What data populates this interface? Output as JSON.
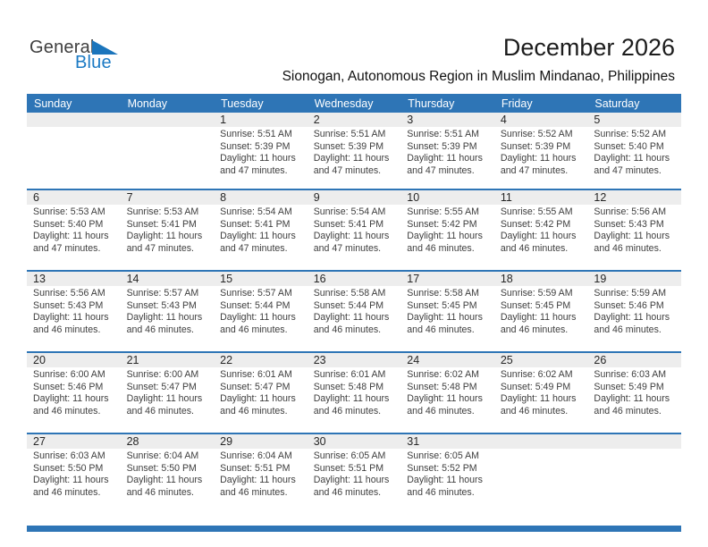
{
  "logo": {
    "line1": "General",
    "line2": "Blue"
  },
  "title": "December 2026",
  "subtitle": "Sionogan, Autonomous Region in Muslim Mindanao, Philippines",
  "weekday_headers": [
    "Sunday",
    "Monday",
    "Tuesday",
    "Wednesday",
    "Thursday",
    "Friday",
    "Saturday"
  ],
  "colors": {
    "header_blue": "#2e75b6",
    "week_separator_blue": "#2e75b6",
    "number_strip_gray": "#ededed",
    "logo_blue": "#1b75bc",
    "body_text": "#3e3e3e"
  },
  "weeks": [
    {
      "days": [
        null,
        null,
        {
          "day": "1",
          "sunrise": "5:51 AM",
          "sunset": "5:39 PM",
          "lines": [
            "Sunrise: 5:51 AM",
            "Sunset: 5:39 PM",
            "Daylight: 11 hours",
            "and 47 minutes."
          ]
        },
        {
          "day": "2",
          "sunrise": "5:51 AM",
          "sunset": "5:39 PM",
          "lines": [
            "Sunrise: 5:51 AM",
            "Sunset: 5:39 PM",
            "Daylight: 11 hours",
            "and 47 minutes."
          ]
        },
        {
          "day": "3",
          "sunrise": "5:51 AM",
          "sunset": "5:39 PM",
          "lines": [
            "Sunrise: 5:51 AM",
            "Sunset: 5:39 PM",
            "Daylight: 11 hours",
            "and 47 minutes."
          ]
        },
        {
          "day": "4",
          "sunrise": "5:52 AM",
          "sunset": "5:39 PM",
          "lines": [
            "Sunrise: 5:52 AM",
            "Sunset: 5:39 PM",
            "Daylight: 11 hours",
            "and 47 minutes."
          ]
        },
        {
          "day": "5",
          "sunrise": "5:52 AM",
          "sunset": "5:40 PM",
          "lines": [
            "Sunrise: 5:52 AM",
            "Sunset: 5:40 PM",
            "Daylight: 11 hours",
            "and 47 minutes."
          ]
        }
      ]
    },
    {
      "days": [
        {
          "day": "6",
          "sunrise": "5:53 AM",
          "sunset": "5:40 PM",
          "lines": [
            "Sunrise: 5:53 AM",
            "Sunset: 5:40 PM",
            "Daylight: 11 hours",
            "and 47 minutes."
          ]
        },
        {
          "day": "7",
          "sunrise": "5:53 AM",
          "sunset": "5:41 PM",
          "lines": [
            "Sunrise: 5:53 AM",
            "Sunset: 5:41 PM",
            "Daylight: 11 hours",
            "and 47 minutes."
          ]
        },
        {
          "day": "8",
          "sunrise": "5:54 AM",
          "sunset": "5:41 PM",
          "lines": [
            "Sunrise: 5:54 AM",
            "Sunset: 5:41 PM",
            "Daylight: 11 hours",
            "and 47 minutes."
          ]
        },
        {
          "day": "9",
          "sunrise": "5:54 AM",
          "sunset": "5:41 PM",
          "lines": [
            "Sunrise: 5:54 AM",
            "Sunset: 5:41 PM",
            "Daylight: 11 hours",
            "and 47 minutes."
          ]
        },
        {
          "day": "10",
          "sunrise": "5:55 AM",
          "sunset": "5:42 PM",
          "lines": [
            "Sunrise: 5:55 AM",
            "Sunset: 5:42 PM",
            "Daylight: 11 hours",
            "and 46 minutes."
          ]
        },
        {
          "day": "11",
          "sunrise": "5:55 AM",
          "sunset": "5:42 PM",
          "lines": [
            "Sunrise: 5:55 AM",
            "Sunset: 5:42 PM",
            "Daylight: 11 hours",
            "and 46 minutes."
          ]
        },
        {
          "day": "12",
          "sunrise": "5:56 AM",
          "sunset": "5:43 PM",
          "lines": [
            "Sunrise: 5:56 AM",
            "Sunset: 5:43 PM",
            "Daylight: 11 hours",
            "and 46 minutes."
          ]
        }
      ]
    },
    {
      "days": [
        {
          "day": "13",
          "sunrise": "5:56 AM",
          "sunset": "5:43 PM",
          "lines": [
            "Sunrise: 5:56 AM",
            "Sunset: 5:43 PM",
            "Daylight: 11 hours",
            "and 46 minutes."
          ]
        },
        {
          "day": "14",
          "sunrise": "5:57 AM",
          "sunset": "5:43 PM",
          "lines": [
            "Sunrise: 5:57 AM",
            "Sunset: 5:43 PM",
            "Daylight: 11 hours",
            "and 46 minutes."
          ]
        },
        {
          "day": "15",
          "sunrise": "5:57 AM",
          "sunset": "5:44 PM",
          "lines": [
            "Sunrise: 5:57 AM",
            "Sunset: 5:44 PM",
            "Daylight: 11 hours",
            "and 46 minutes."
          ]
        },
        {
          "day": "16",
          "sunrise": "5:58 AM",
          "sunset": "5:44 PM",
          "lines": [
            "Sunrise: 5:58 AM",
            "Sunset: 5:44 PM",
            "Daylight: 11 hours",
            "and 46 minutes."
          ]
        },
        {
          "day": "17",
          "sunrise": "5:58 AM",
          "sunset": "5:45 PM",
          "lines": [
            "Sunrise: 5:58 AM",
            "Sunset: 5:45 PM",
            "Daylight: 11 hours",
            "and 46 minutes."
          ]
        },
        {
          "day": "18",
          "sunrise": "5:59 AM",
          "sunset": "5:45 PM",
          "lines": [
            "Sunrise: 5:59 AM",
            "Sunset: 5:45 PM",
            "Daylight: 11 hours",
            "and 46 minutes."
          ]
        },
        {
          "day": "19",
          "sunrise": "5:59 AM",
          "sunset": "5:46 PM",
          "lines": [
            "Sunrise: 5:59 AM",
            "Sunset: 5:46 PM",
            "Daylight: 11 hours",
            "and 46 minutes."
          ]
        }
      ]
    },
    {
      "days": [
        {
          "day": "20",
          "sunrise": "6:00 AM",
          "sunset": "5:46 PM",
          "lines": [
            "Sunrise: 6:00 AM",
            "Sunset: 5:46 PM",
            "Daylight: 11 hours",
            "and 46 minutes."
          ]
        },
        {
          "day": "21",
          "sunrise": "6:00 AM",
          "sunset": "5:47 PM",
          "lines": [
            "Sunrise: 6:00 AM",
            "Sunset: 5:47 PM",
            "Daylight: 11 hours",
            "and 46 minutes."
          ]
        },
        {
          "day": "22",
          "sunrise": "6:01 AM",
          "sunset": "5:47 PM",
          "lines": [
            "Sunrise: 6:01 AM",
            "Sunset: 5:47 PM",
            "Daylight: 11 hours",
            "and 46 minutes."
          ]
        },
        {
          "day": "23",
          "sunrise": "6:01 AM",
          "sunset": "5:48 PM",
          "lines": [
            "Sunrise: 6:01 AM",
            "Sunset: 5:48 PM",
            "Daylight: 11 hours",
            "and 46 minutes."
          ]
        },
        {
          "day": "24",
          "sunrise": "6:02 AM",
          "sunset": "5:48 PM",
          "lines": [
            "Sunrise: 6:02 AM",
            "Sunset: 5:48 PM",
            "Daylight: 11 hours",
            "and 46 minutes."
          ]
        },
        {
          "day": "25",
          "sunrise": "6:02 AM",
          "sunset": "5:49 PM",
          "lines": [
            "Sunrise: 6:02 AM",
            "Sunset: 5:49 PM",
            "Daylight: 11 hours",
            "and 46 minutes."
          ]
        },
        {
          "day": "26",
          "sunrise": "6:03 AM",
          "sunset": "5:49 PM",
          "lines": [
            "Sunrise: 6:03 AM",
            "Sunset: 5:49 PM",
            "Daylight: 11 hours",
            "and 46 minutes."
          ]
        }
      ]
    },
    {
      "days": [
        {
          "day": "27",
          "sunrise": "6:03 AM",
          "sunset": "5:50 PM",
          "lines": [
            "Sunrise: 6:03 AM",
            "Sunset: 5:50 PM",
            "Daylight: 11 hours",
            "and 46 minutes."
          ]
        },
        {
          "day": "28",
          "sunrise": "6:04 AM",
          "sunset": "5:50 PM",
          "lines": [
            "Sunrise: 6:04 AM",
            "Sunset: 5:50 PM",
            "Daylight: 11 hours",
            "and 46 minutes."
          ]
        },
        {
          "day": "29",
          "sunrise": "6:04 AM",
          "sunset": "5:51 PM",
          "lines": [
            "Sunrise: 6:04 AM",
            "Sunset: 5:51 PM",
            "Daylight: 11 hours",
            "and 46 minutes."
          ]
        },
        {
          "day": "30",
          "sunrise": "6:05 AM",
          "sunset": "5:51 PM",
          "lines": [
            "Sunrise: 6:05 AM",
            "Sunset: 5:51 PM",
            "Daylight: 11 hours",
            "and 46 minutes."
          ]
        },
        {
          "day": "31",
          "sunrise": "6:05 AM",
          "sunset": "5:52 PM",
          "lines": [
            "Sunrise: 6:05 AM",
            "Sunset: 5:52 PM",
            "Daylight: 11 hours",
            "and 46 minutes."
          ]
        },
        null,
        null
      ]
    }
  ]
}
